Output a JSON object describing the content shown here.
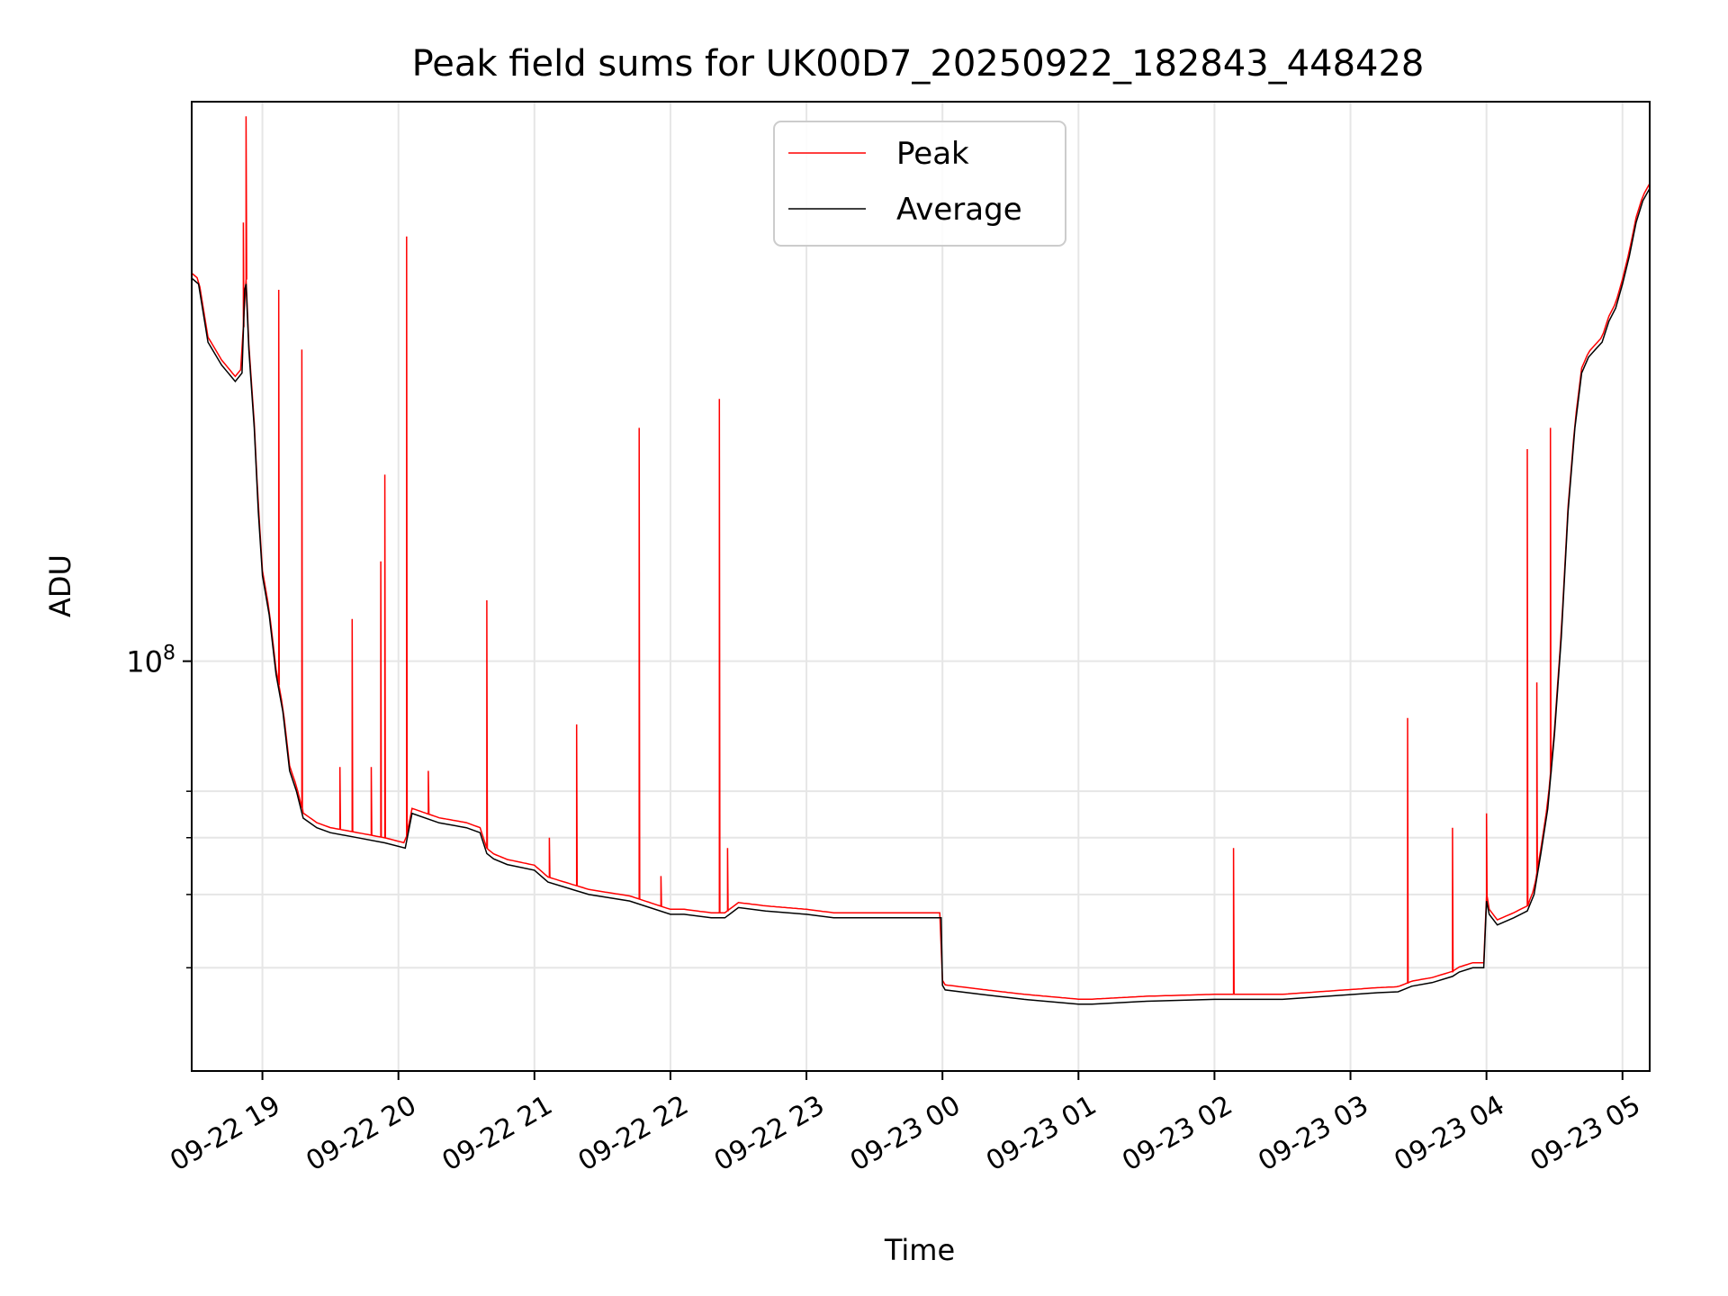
{
  "chart_data": {
    "type": "line",
    "title": "Peak field sums for UK00D7_20250922_182843_448428",
    "xlabel": "Time",
    "ylabel": "ADU",
    "y_scale": "log",
    "ylim": [
      20000000,
      900000000
    ],
    "xlim_hours": [
      -0.52,
      10.2
    ],
    "x_ticks": [
      {
        "h": 0,
        "label": "09-22 19"
      },
      {
        "h": 1,
        "label": "09-22 20"
      },
      {
        "h": 2,
        "label": "09-22 21"
      },
      {
        "h": 3,
        "label": "09-22 22"
      },
      {
        "h": 4,
        "label": "09-22 23"
      },
      {
        "h": 5,
        "label": "09-23 00"
      },
      {
        "h": 6,
        "label": "09-23 01"
      },
      {
        "h": 7,
        "label": "09-23 02"
      },
      {
        "h": 8,
        "label": "09-23 03"
      },
      {
        "h": 9,
        "label": "09-23 04"
      },
      {
        "h": 10,
        "label": "09-23 05"
      }
    ],
    "y_major_ticks": [
      {
        "value": 100000000,
        "base": "10",
        "exp": "8"
      }
    ],
    "y_minor_ticks": [
      30000000,
      40000000,
      50000000,
      60000000
    ],
    "grid": true,
    "legend": {
      "placement": "upper-center",
      "entries": [
        "Peak",
        "Average"
      ]
    },
    "series": [
      {
        "name": "Average",
        "color": "#000000",
        "x_hours": [
          -0.52,
          -0.47,
          -0.4,
          -0.3,
          -0.2,
          -0.15,
          -0.13,
          -0.12,
          -0.1,
          -0.06,
          -0.03,
          0.0,
          0.05,
          0.1,
          0.15,
          0.2,
          0.25,
          0.3,
          0.4,
          0.5,
          0.7,
          0.9,
          1.05,
          1.1,
          1.3,
          1.5,
          1.6,
          1.65,
          1.7,
          1.8,
          2.0,
          2.1,
          2.4,
          2.7,
          3.0,
          3.1,
          3.3,
          3.4,
          3.5,
          3.7,
          4.0,
          4.2,
          4.5,
          4.8,
          4.99,
          5.0,
          5.02,
          5.3,
          5.6,
          6.0,
          6.1,
          6.5,
          7.0,
          7.5,
          8.0,
          8.2,
          8.35,
          8.4,
          8.45,
          8.6,
          8.75,
          8.8,
          8.9,
          8.98,
          9.0,
          9.02,
          9.08,
          9.2,
          9.3,
          9.35,
          9.4,
          9.45,
          9.5,
          9.55,
          9.6,
          9.65,
          9.7,
          9.75,
          9.8,
          9.85,
          9.9,
          9.95,
          10.0,
          10.05,
          10.1,
          10.15,
          10.2
        ],
        "y": [
          450000000,
          440000000,
          350000000,
          320000000,
          300000000,
          310000000,
          430000000,
          440000000,
          340000000,
          250000000,
          180000000,
          140000000,
          120000000,
          95000000,
          82000000,
          65000000,
          60000000,
          54000000,
          52000000,
          51000000,
          50000000,
          49000000,
          48000000,
          55000000,
          53000000,
          52000000,
          51000000,
          47000000,
          46000000,
          45000000,
          44000000,
          42000000,
          40000000,
          39000000,
          37000000,
          37000000,
          36500000,
          36500000,
          38000000,
          37500000,
          37000000,
          36500000,
          36500000,
          36500000,
          36500000,
          28000000,
          27500000,
          27000000,
          26500000,
          26000000,
          26000000,
          26300000,
          26500000,
          26500000,
          27000000,
          27200000,
          27300000,
          27600000,
          27900000,
          28300000,
          29000000,
          29500000,
          30000000,
          30000000,
          39000000,
          37000000,
          35500000,
          36500000,
          37500000,
          40000000,
          47000000,
          56000000,
          75000000,
          110000000,
          180000000,
          250000000,
          310000000,
          330000000,
          340000000,
          350000000,
          380000000,
          400000000,
          440000000,
          490000000,
          560000000,
          610000000,
          640000000
        ]
      },
      {
        "name": "Peak",
        "color": "#ff0000",
        "spikes": [
          {
            "h": -0.12,
            "v": 850000000
          },
          {
            "h": -0.14,
            "v": 560000000
          },
          {
            "h": 0.12,
            "v": 430000000
          },
          {
            "h": 0.29,
            "v": 340000000
          },
          {
            "h": 0.57,
            "v": 66000000
          },
          {
            "h": 0.66,
            "v": 118000000
          },
          {
            "h": 0.8,
            "v": 66000000
          },
          {
            "h": 0.87,
            "v": 148000000
          },
          {
            "h": 0.9,
            "v": 208000000
          },
          {
            "h": 1.06,
            "v": 530000000
          },
          {
            "h": 1.22,
            "v": 65000000
          },
          {
            "h": 1.65,
            "v": 127000000
          },
          {
            "h": 2.11,
            "v": 50000000
          },
          {
            "h": 2.31,
            "v": 78000000
          },
          {
            "h": 2.77,
            "v": 250000000
          },
          {
            "h": 2.93,
            "v": 43000000
          },
          {
            "h": 3.36,
            "v": 280000000
          },
          {
            "h": 3.42,
            "v": 48000000
          },
          {
            "h": 7.14,
            "v": 48000000
          },
          {
            "h": 8.42,
            "v": 80000000
          },
          {
            "h": 8.75,
            "v": 52000000
          },
          {
            "h": 9.0,
            "v": 55000000
          },
          {
            "h": 9.3,
            "v": 230000000
          },
          {
            "h": 9.37,
            "v": 92000000
          },
          {
            "h": 9.47,
            "v": 250000000
          }
        ]
      }
    ]
  }
}
